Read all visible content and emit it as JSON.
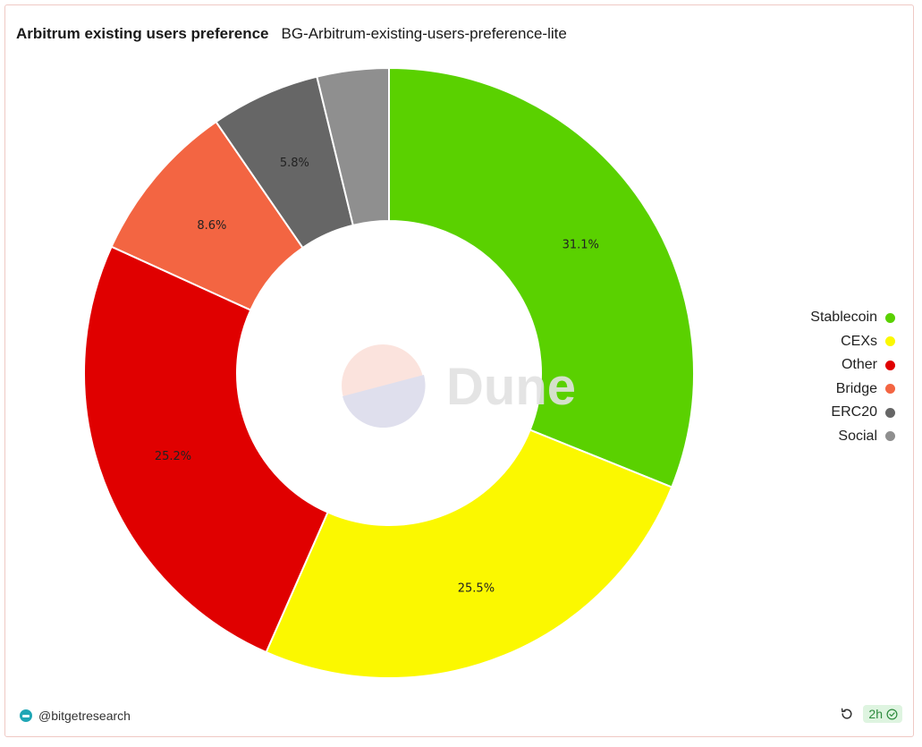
{
  "header": {
    "title": "Arbitrum existing users preference",
    "subtitle": "BG-Arbitrum-existing-users-preference-lite"
  },
  "watermark": {
    "text": "Dune"
  },
  "chart_data": {
    "type": "pie",
    "title": "Arbitrum existing users preference",
    "donut": true,
    "legend_position": "right",
    "series": [
      {
        "name": "Stablecoin",
        "value": 31.1,
        "color": "#5ad100",
        "label": "31.1%"
      },
      {
        "name": "CEXs",
        "value": 25.5,
        "color": "#fbf800",
        "label": "25.5%"
      },
      {
        "name": "Other",
        "value": 25.2,
        "color": "#e00000",
        "label": "25.2%"
      },
      {
        "name": "Bridge",
        "value": 8.6,
        "color": "#f36542",
        "label": "8.6%"
      },
      {
        "name": "ERC20",
        "value": 5.8,
        "color": "#666666",
        "label": "5.8%"
      },
      {
        "name": "Social",
        "value": 3.8,
        "color": "#8f8f8f",
        "label": ""
      }
    ]
  },
  "footer": {
    "author": "@bitgetresearch",
    "refresh_icon": "refresh-icon",
    "age_badge": "2h",
    "status_icon": "check-circle-icon",
    "badge_color": "#def4e0"
  }
}
